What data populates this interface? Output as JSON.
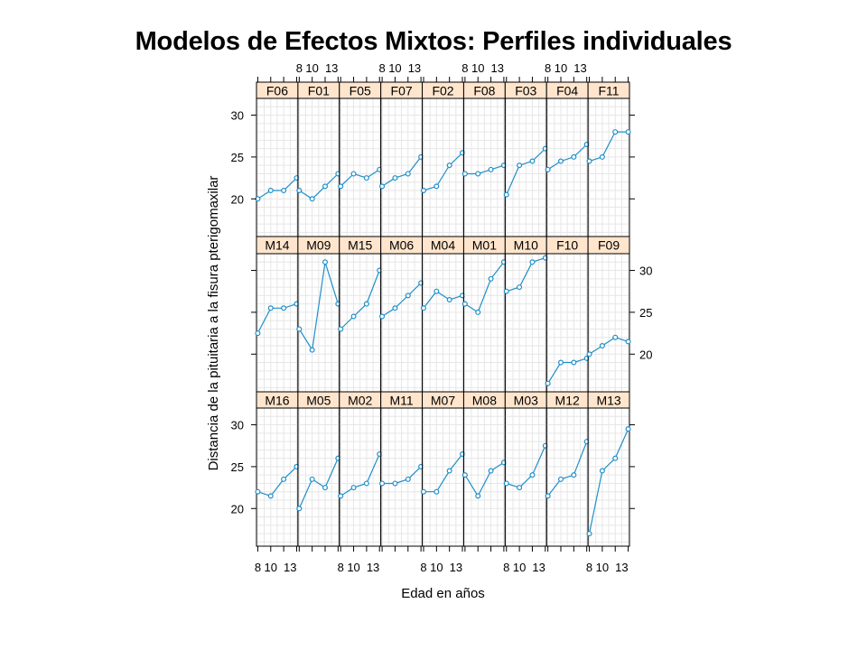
{
  "title": "Modelos de Efectos Mixtos: Perfiles individuales",
  "colors": {
    "strip_bg": "#ffe5cc",
    "line": "#1f8fc9",
    "point": "#1f8fc9",
    "grid": "#e6e6e6",
    "frame": "#000000"
  },
  "chart_data": {
    "type": "line",
    "layout": "lattice 9x3 panels",
    "title": "Modelos de Efectos Mixtos: Perfiles individuales",
    "xlabel": "Edad en años",
    "ylabel": "Distancia de la pituitaria a la fisura pterigomaxilar",
    "x": [
      8,
      10,
      12,
      14
    ],
    "xlim": [
      7.8,
      14.2
    ],
    "ylim": [
      15.5,
      32
    ],
    "x_tick_labels": [
      "8",
      "10",
      "13"
    ],
    "x_tick_values": [
      8,
      10,
      13
    ],
    "y_tick_values": [
      20,
      25,
      30
    ],
    "grid": true,
    "rows": [
      {
        "panels": [
          {
            "subject": "F06",
            "values": [
              20.0,
              21.0,
              21.0,
              22.5
            ]
          },
          {
            "subject": "F01",
            "values": [
              21.0,
              20.0,
              21.5,
              23.0
            ]
          },
          {
            "subject": "F05",
            "values": [
              21.5,
              23.0,
              22.5,
              23.5
            ]
          },
          {
            "subject": "F07",
            "values": [
              21.5,
              22.5,
              23.0,
              25.0
            ]
          },
          {
            "subject": "F02",
            "values": [
              21.0,
              21.5,
              24.0,
              25.5
            ]
          },
          {
            "subject": "F08",
            "values": [
              23.0,
              23.0,
              23.5,
              24.0
            ]
          },
          {
            "subject": "F03",
            "values": [
              20.5,
              24.0,
              24.5,
              26.0
            ]
          },
          {
            "subject": "F04",
            "values": [
              23.5,
              24.5,
              25.0,
              26.5
            ]
          },
          {
            "subject": "F11",
            "values": [
              24.5,
              25.0,
              28.0,
              28.0
            ]
          }
        ]
      },
      {
        "panels": [
          {
            "subject": "M14",
            "values": [
              22.5,
              25.5,
              25.5,
              26.0
            ]
          },
          {
            "subject": "M09",
            "values": [
              23.0,
              20.5,
              31.0,
              26.0
            ]
          },
          {
            "subject": "M15",
            "values": [
              23.0,
              24.5,
              26.0,
              30.0
            ]
          },
          {
            "subject": "M06",
            "values": [
              24.5,
              25.5,
              27.0,
              28.5
            ]
          },
          {
            "subject": "M04",
            "values": [
              25.5,
              27.5,
              26.5,
              27.0
            ]
          },
          {
            "subject": "M01",
            "values": [
              26.0,
              25.0,
              29.0,
              31.0
            ]
          },
          {
            "subject": "M10",
            "values": [
              27.5,
              28.0,
              31.0,
              31.5
            ]
          },
          {
            "subject": "F10",
            "values": [
              16.5,
              19.0,
              19.0,
              19.5
            ]
          },
          {
            "subject": "F09",
            "values": [
              20.0,
              21.0,
              22.0,
              21.5
            ]
          }
        ]
      },
      {
        "panels": [
          {
            "subject": "M16",
            "values": [
              22.0,
              21.5,
              23.5,
              25.0
            ]
          },
          {
            "subject": "M05",
            "values": [
              20.0,
              23.5,
              22.5,
              26.0
            ]
          },
          {
            "subject": "M02",
            "values": [
              21.5,
              22.5,
              23.0,
              26.5
            ]
          },
          {
            "subject": "M11",
            "values": [
              23.0,
              23.0,
              23.5,
              25.0
            ]
          },
          {
            "subject": "M07",
            "values": [
              22.0,
              22.0,
              24.5,
              26.5
            ]
          },
          {
            "subject": "M08",
            "values": [
              24.0,
              21.5,
              24.5,
              25.5
            ]
          },
          {
            "subject": "M03",
            "values": [
              23.0,
              22.5,
              24.0,
              27.5
            ]
          },
          {
            "subject": "M12",
            "values": [
              21.5,
              23.5,
              24.0,
              28.0
            ]
          },
          {
            "subject": "M13",
            "values": [
              17.0,
              24.5,
              26.0,
              29.5
            ]
          }
        ]
      }
    ]
  }
}
